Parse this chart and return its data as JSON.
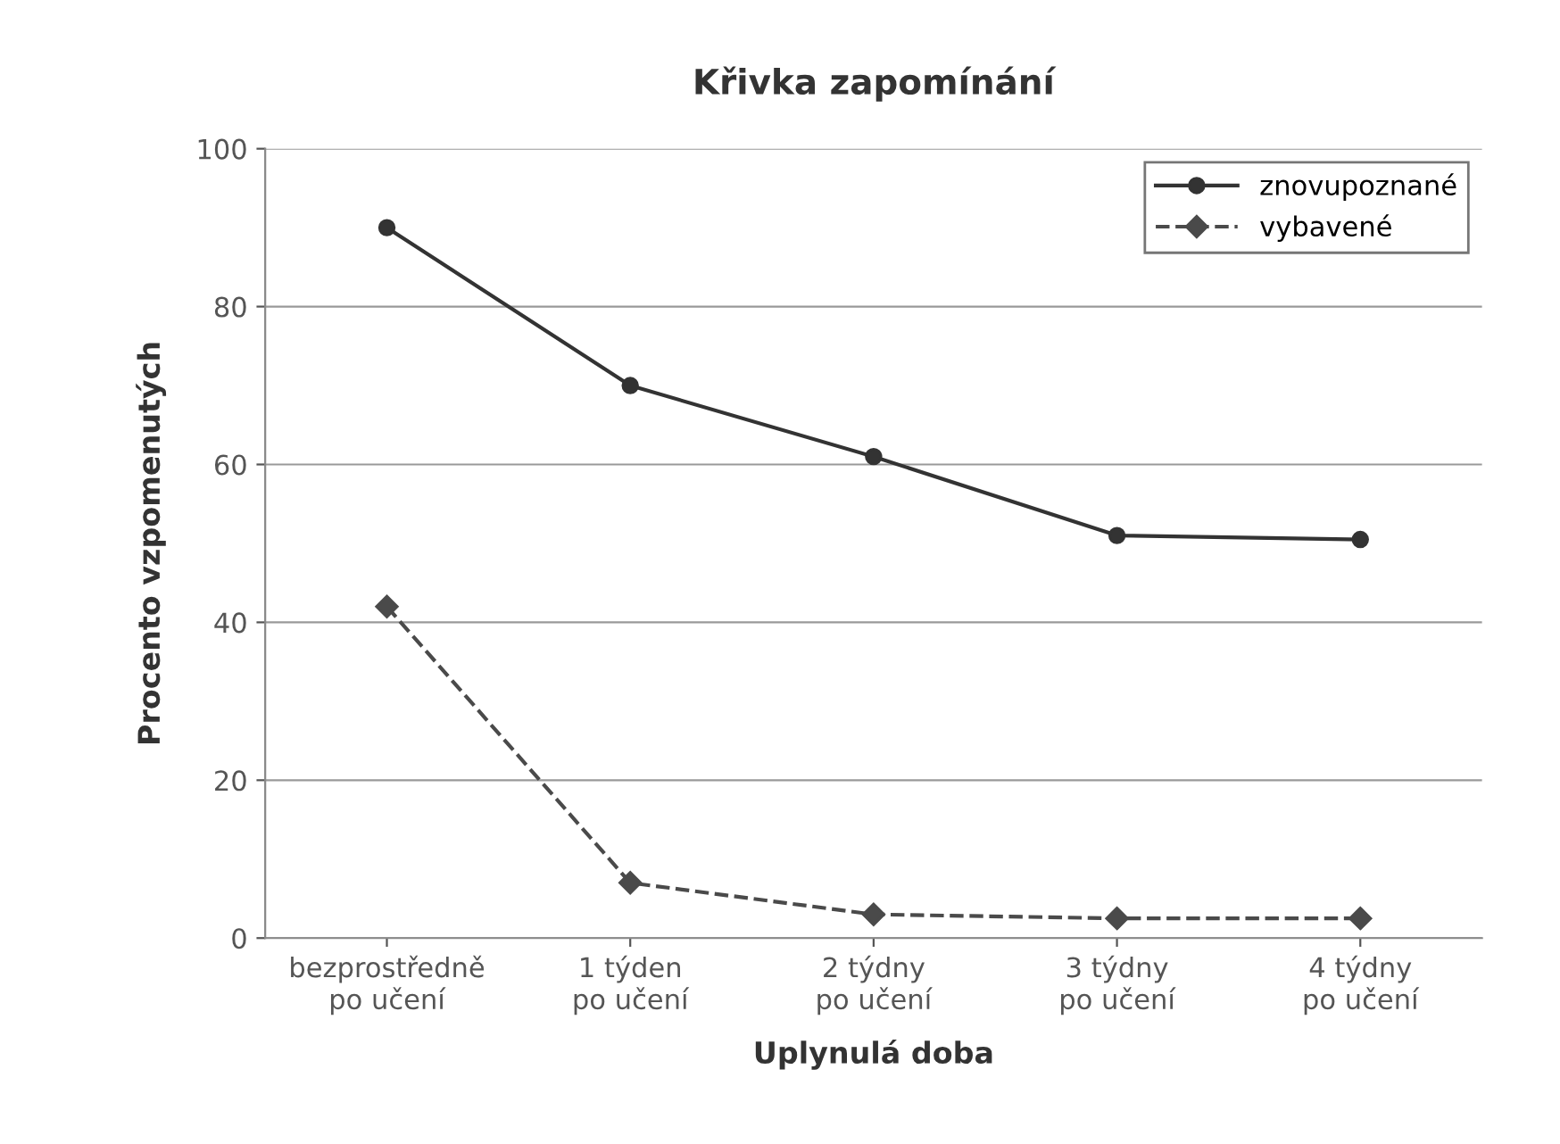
{
  "chart_data": {
    "type": "line",
    "title": "Křivka zapomínání",
    "xlabel": "Uplynulá doba",
    "ylabel": "Procento vzpomenutých",
    "categories": [
      "bezprostředně\npo učení",
      "1 týden\npo učení",
      "2 týdny\npo učení",
      "3 týdny\npo učení",
      "4 týdny\npo učení"
    ],
    "series": [
      {
        "name": "znovupoznané",
        "color": "#333333",
        "values": [
          90,
          70,
          61,
          51,
          50.5
        ],
        "marker": "circle",
        "line_style": "solid"
      },
      {
        "name": "vybavené",
        "color": "#4a4a4a",
        "values": [
          42,
          7,
          3,
          2.5,
          2.5
        ],
        "marker": "diamond",
        "line_style": "dashed"
      }
    ],
    "ylim": [
      0,
      100
    ],
    "yticks": [
      0,
      20,
      40,
      60,
      80,
      100
    ],
    "grid": "y",
    "legend": "top right"
  }
}
